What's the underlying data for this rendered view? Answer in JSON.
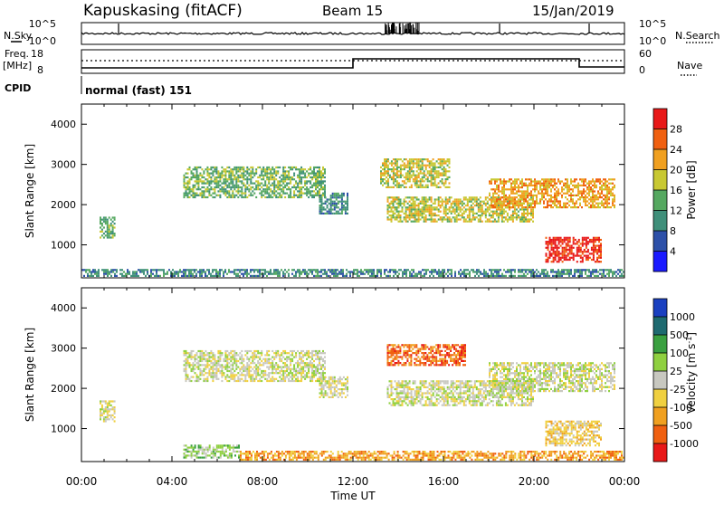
{
  "header": {
    "station": "Kapuskasing (fitACF)",
    "beam": "Beam 15",
    "date": "15/Jan/2019"
  },
  "left_labels": {
    "nsky": "N.Sky",
    "freq": "Freq.",
    "freq_unit": "[MHz]",
    "cpid": "CPID"
  },
  "right_labels": {
    "nsearch": "N.Search",
    "nave": "Nave"
  },
  "cpid_text": "normal (fast) 151",
  "noise_axis": {
    "ticks": [
      "10^5",
      "10^0"
    ]
  },
  "freq_axis": {
    "ticks": [
      "18",
      "8"
    ]
  },
  "nave_axis": {
    "ticks": [
      "60",
      "0"
    ]
  },
  "colors": {
    "power": [
      "#1a1aff",
      "#2d50a8",
      "#3f8f7a",
      "#55a860",
      "#c8c832",
      "#f0a020",
      "#f06010",
      "#e81818"
    ],
    "velocity": [
      "#e81818",
      "#f06010",
      "#f0a020",
      "#f0d040",
      "#c8c8c0",
      "#8fd040",
      "#3aa040",
      "#1e6a70",
      "#1a40c0"
    ]
  },
  "chart_data": [
    {
      "type": "heatmap",
      "name": "power-panel",
      "ylabel": "Slant Range [km]",
      "xlabel": "",
      "x_ticks": [
        "00:00",
        "04:00",
        "08:00",
        "12:00",
        "16:00",
        "20:00",
        "00:00"
      ],
      "y_ticks": [
        1000,
        2000,
        3000,
        4000
      ],
      "xlim_hours": [
        0,
        24
      ],
      "ylim_km": [
        180,
        4500
      ],
      "colorbar": {
        "label": "Power [dB]",
        "ticks": [
          "28",
          "24",
          "20",
          "16",
          "12",
          "8",
          "4"
        ]
      },
      "regions": [
        {
          "t0": 4.5,
          "t1": 10.8,
          "r0": 2150,
          "r1": 2950,
          "level": 3
        },
        {
          "t0": 10.5,
          "t1": 11.8,
          "r0": 1750,
          "r1": 2300,
          "level": 2
        },
        {
          "t0": 0.8,
          "t1": 1.5,
          "r0": 1150,
          "r1": 1700,
          "level": 3
        },
        {
          "t0": 13.2,
          "t1": 16.3,
          "r0": 2400,
          "r1": 3150,
          "level": 4
        },
        {
          "t0": 13.5,
          "t1": 20.0,
          "r0": 1550,
          "r1": 2200,
          "level": 4
        },
        {
          "t0": 18.0,
          "t1": 23.6,
          "r0": 1900,
          "r1": 2650,
          "level": 5
        },
        {
          "t0": 20.5,
          "t1": 23.0,
          "r0": 550,
          "r1": 1200,
          "level": 7
        },
        {
          "t0": 0.0,
          "t1": 24.0,
          "r0": 180,
          "r1": 400,
          "level": 2
        }
      ]
    },
    {
      "type": "heatmap",
      "name": "velocity-panel",
      "ylabel": "Slant Range [km]",
      "xlabel": "Time UT",
      "x_ticks": [
        "00:00",
        "04:00",
        "08:00",
        "12:00",
        "16:00",
        "20:00",
        "00:00"
      ],
      "y_ticks": [
        1000,
        2000,
        3000,
        4000
      ],
      "xlim_hours": [
        0,
        24
      ],
      "ylim_km": [
        180,
        4500
      ],
      "colorbar": {
        "label": "Velocity [m s^-1]",
        "ticks": [
          "1000",
          "500",
          "100",
          "25",
          "-25",
          "-100",
          "-500",
          "-1000"
        ]
      },
      "regions": [
        {
          "t0": 4.5,
          "t1": 10.8,
          "r0": 2150,
          "r1": 2950,
          "level": 4
        },
        {
          "t0": 10.5,
          "t1": 11.8,
          "r0": 1750,
          "r1": 2300,
          "level": 4
        },
        {
          "t0": 0.8,
          "t1": 1.5,
          "r0": 1150,
          "r1": 1700,
          "level": 4
        },
        {
          "t0": 13.5,
          "t1": 17.0,
          "r0": 2550,
          "r1": 3100,
          "level": 1
        },
        {
          "t0": 13.5,
          "t1": 20.0,
          "r0": 1550,
          "r1": 2200,
          "level": 4
        },
        {
          "t0": 18.0,
          "t1": 23.6,
          "r0": 1900,
          "r1": 2650,
          "level": 4
        },
        {
          "t0": 20.5,
          "t1": 23.0,
          "r0": 550,
          "r1": 1200,
          "level": 3
        },
        {
          "t0": 4.5,
          "t1": 7.0,
          "r0": 250,
          "r1": 600,
          "level": 5
        },
        {
          "t0": 7.0,
          "t1": 24.0,
          "r0": 180,
          "r1": 450,
          "level": 2
        }
      ]
    }
  ]
}
